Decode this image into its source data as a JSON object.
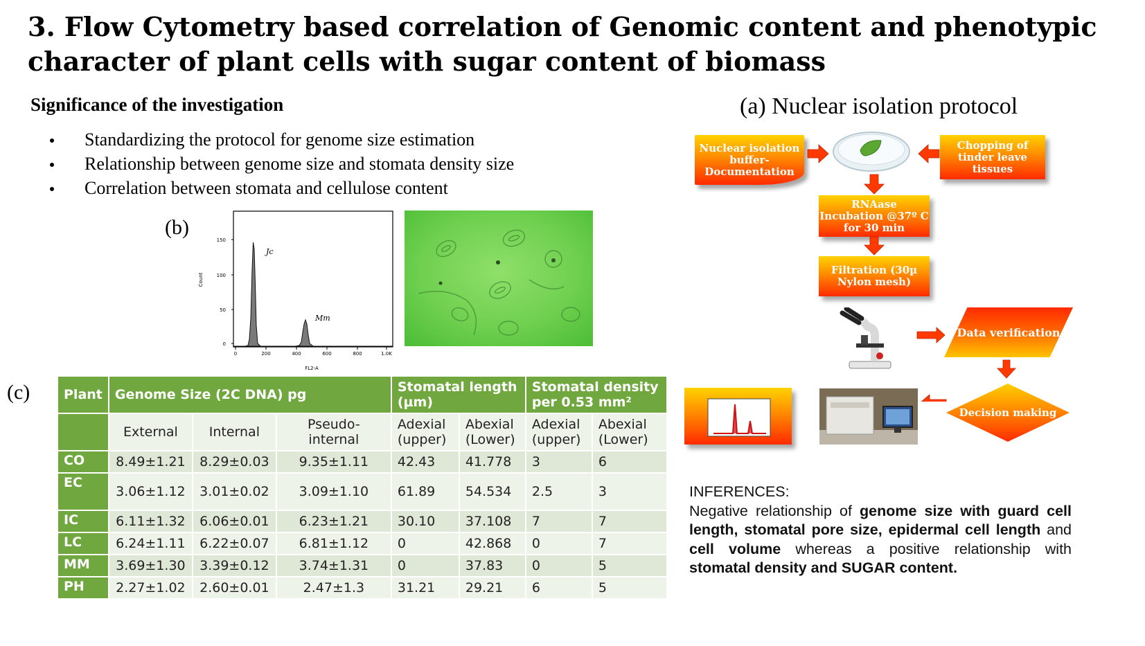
{
  "title": "3. Flow Cytometry based correlation of Genomic content  and phenotypic character of plant cells with sugar content of biomass",
  "significance": {
    "heading": "Significance of the investigation",
    "bullets": [
      "Standardizing the protocol for genome size estimation",
      "Relationship between genome size and stomata density size",
      "Correlation between stomata and cellulose content"
    ]
  },
  "panel_labels": {
    "a": "(a) Nuclear isolation protocol",
    "b": "(b)",
    "c": "(c)"
  },
  "histogram": {
    "x_label": "FL2-A",
    "y_label": "Count",
    "x_ticks": [
      "0",
      "200",
      "400",
      "600",
      "800",
      "1.0K"
    ],
    "y_ticks": [
      "0",
      "50",
      "100",
      "150"
    ],
    "peak_labels": [
      "Jc",
      "Mm"
    ]
  },
  "table": {
    "col_headers": {
      "plant": "Plant",
      "genome": "Genome Size (2C DNA) pg",
      "stomatal_length": "Stomatal length (µm)",
      "stomatal_density": "Stomatal density per 0.53 mm²"
    },
    "sub_headers": [
      "External",
      "Internal",
      "Pseudo-internal",
      "Adexial (upper)",
      "Abexial (Lower)",
      "Adexial (upper)",
      "Abexial (Lower)"
    ],
    "rows": [
      {
        "plant": "CO",
        "external": "8.49±1.21",
        "internal": "8.29±0.03",
        "pseudo": "9.35±1.11",
        "len_upper": "42.43",
        "len_lower": "41.778",
        "den_upper": "3",
        "den_lower": "6"
      },
      {
        "plant": "EC",
        "external": "3.06±1.12",
        "internal": "3.01±0.02",
        "pseudo": "3.09±1.10",
        "len_upper": "61.89",
        "len_lower": "54.534",
        "den_upper": "2.5",
        "den_lower": "3"
      },
      {
        "plant": "IC",
        "external": "6.11±1.32",
        "internal": "6.06±0.01",
        "pseudo": "6.23±1.21",
        "len_upper": "30.10",
        "len_lower": "37.108",
        "den_upper": "7",
        "den_lower": "7"
      },
      {
        "plant": "LC",
        "external": "6.24±1.11",
        "internal": "6.22±0.07",
        "pseudo": "6.81±1.12",
        "len_upper": "0",
        "len_lower": "42.868",
        "den_upper": "0",
        "den_lower": "7"
      },
      {
        "plant": "MM",
        "external": "3.69±1.30",
        "internal": "3.39±0.12",
        "pseudo": "3.74±1.31",
        "len_upper": "0",
        "len_lower": "37.83",
        "den_upper": "0",
        "den_lower": "5"
      },
      {
        "plant": "PH",
        "external": "2.27±1.02",
        "internal": "2.60±0.01",
        "pseudo": "2.47±1.3",
        "len_upper": "31.21",
        "len_lower": "29.21",
        "den_upper": "6",
        "den_lower": "5"
      }
    ]
  },
  "flowchart": {
    "buffer": "Nuclear isolation buffer-Documentation",
    "chopping": "Chopping of tinder leave tissues",
    "rnaase": "RNAase Incubation @37º C for 30 min",
    "filtration": "Filtration (30µ Nylon mesh)",
    "data_verification": "Data verification",
    "decision": "Decision making"
  },
  "inferences": {
    "heading": "INFERENCES:",
    "t1": "Negative relationship of ",
    "b1": "genome size with guard cell length, stomatal pore size, epidermal cell length",
    "t2": " and ",
    "b2": "cell volume",
    "t3": " whereas a positive relationship with ",
    "b3": "stomatal density and SUGAR content."
  },
  "colors": {
    "table_header": "#70a83f",
    "row_odd": "#dfe7d7",
    "row_even": "#eef3e9",
    "flow_orange": "#ff5a00",
    "flow_yellow": "#ffd200",
    "arrow": "#ff3300"
  }
}
